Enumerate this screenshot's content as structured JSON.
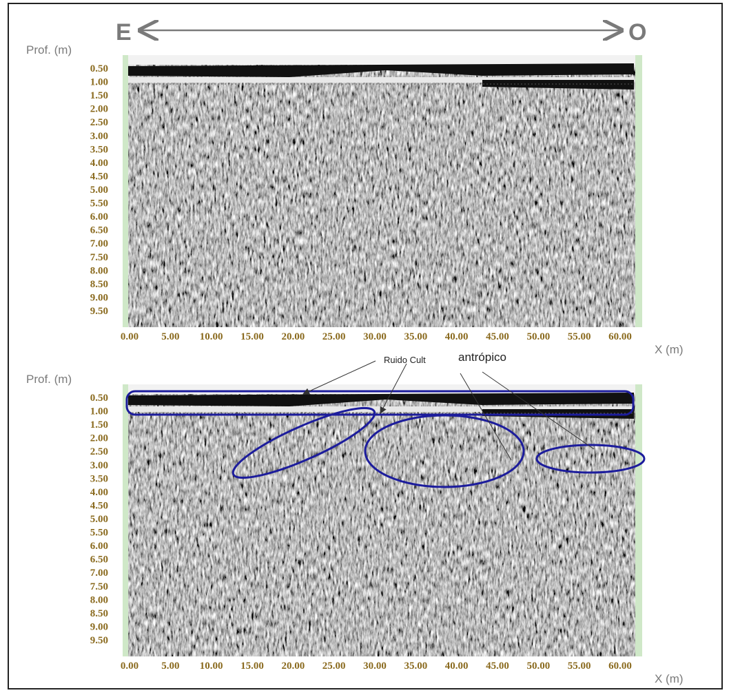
{
  "header": {
    "left": "E",
    "right": "O"
  },
  "panels": [
    {
      "y_label": "Prof. (m)",
      "x_label": "X (m)",
      "y_ticks": [
        "0.50",
        "1.00",
        "1.50",
        "2.00",
        "2.50",
        "3.00",
        "3.50",
        "4.00",
        "4.50",
        "5.00",
        "5.50",
        "6.00",
        "6.50",
        "7.00",
        "7.50",
        "8.00",
        "8.50",
        "9.00",
        "9.50"
      ],
      "x_ticks": [
        "0.00",
        "5.00",
        "10.00",
        "15.00",
        "20.00",
        "25.00",
        "30.00",
        "35.00",
        "40.00",
        "45.00",
        "50.00",
        "55.00",
        "60.00"
      ]
    },
    {
      "y_label": "Prof. (m)",
      "x_label": "X (m)",
      "y_ticks": [
        "0.50",
        "1.00",
        "1.50",
        "2.00",
        "2.50",
        "3.00",
        "3.50",
        "4.00",
        "4.50",
        "5.00",
        "5.50",
        "6.00",
        "6.50",
        "7.00",
        "7.50",
        "8.00",
        "8.50",
        "9.00",
        "9.50"
      ],
      "x_ticks": [
        "0.00",
        "5.00",
        "10.00",
        "15.00",
        "20.00",
        "25.00",
        "30.00",
        "35.00",
        "40.00",
        "45.00",
        "50.00",
        "55.00",
        "60.00"
      ]
    }
  ],
  "annotation": {
    "text": "Ruido Cult",
    "text2": "antrópico"
  }
}
